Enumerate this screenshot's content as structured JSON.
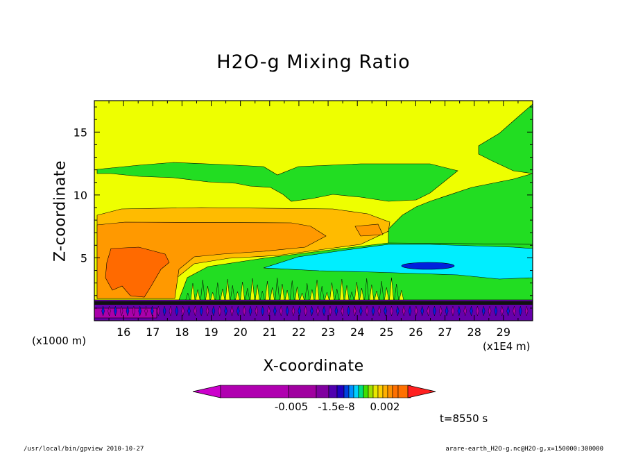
{
  "chart_data": {
    "type": "heatmap",
    "title": "H2O-g Mixing Ratio",
    "xlabel": "X-coordinate",
    "ylabel": "Z-coordinate",
    "x_unit": "(x1E4 m)",
    "y_unit": "(x1000 m)",
    "x_ticks": [
      "16",
      "17",
      "18",
      "19",
      "20",
      "21",
      "22",
      "23",
      "24",
      "25",
      "26",
      "27",
      "28",
      "29"
    ],
    "y_ticks": [
      "5",
      "10",
      "15"
    ],
    "xlim": [
      15,
      30
    ],
    "ylim": [
      0,
      17.5
    ],
    "colorbar": {
      "labels": [
        "-0.005",
        "-1.5e-8",
        "0.002"
      ],
      "colors": [
        "#cc00cc",
        "#b000b0",
        "#a000a0",
        "#8000a0",
        "#5000b0",
        "#2000c0",
        "#0040e0",
        "#0090ff",
        "#00d0ff",
        "#00e080",
        "#40e000",
        "#a0e000",
        "#e8e800",
        "#ffd000",
        "#ffb000",
        "#ff9000",
        "#ff7000",
        "#ff2020"
      ]
    },
    "colors": {
      "yellow": "#eeff00",
      "green": "#22dd22",
      "light_orange": "#ffbb00",
      "orange": "#ff9900",
      "deep_orange": "#ff6a00",
      "cyan": "#00eeff",
      "blue": "#0022dd",
      "purple": "#6600aa",
      "magenta": "#aa00aa"
    }
  },
  "annotations": {
    "time": "t=8550 s",
    "footer_left": "/usr/local/bin/gpview   2010-10-27",
    "footer_right": "arare-earth_H2O-g.nc@H2O-g,x=150000:300000"
  }
}
